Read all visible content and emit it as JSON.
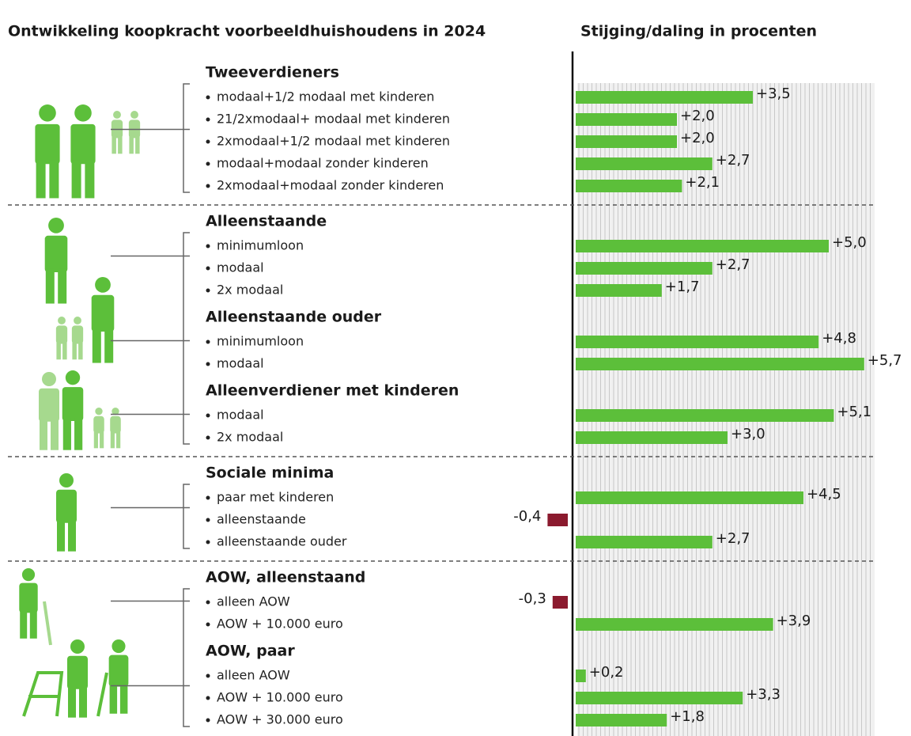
{
  "chart_data": {
    "type": "bar",
    "orientation": "horizontal",
    "title": "Ontwikkeling koopkracht voorbeeldhuishoudens in 2024",
    "subtitle": "Stijging/daling in procenten",
    "color": "#5cbf3a",
    "negative_color": "#8b1a2e",
    "xlim": [
      -1,
      6
    ],
    "sections": [
      {
        "groups": [
          {
            "name": "Tweeverdieners",
            "categories": [
              "modaal+1/2 modaal met kinderen",
              "21/2xmodaal+ modaal met kinderen",
              "2xmodaal+1/2 modaal met kinderen",
              "modaal+modaal zonder kinderen",
              "2xmodaal+modaal zonder kinderen"
            ],
            "values": [
              3.5,
              2.0,
              2.0,
              2.7,
              2.1
            ],
            "value_labels": [
              "+3,5",
              "+2,0",
              "+2,0",
              "+2,7",
              "+2,1"
            ]
          }
        ]
      },
      {
        "groups": [
          {
            "name": "Alleenstaande",
            "categories": [
              "minimumloon",
              "modaal",
              "2x modaal"
            ],
            "values": [
              5.0,
              2.7,
              1.7
            ],
            "value_labels": [
              "+5,0",
              "+2,7",
              "+1,7"
            ]
          },
          {
            "name": "Alleenstaande ouder",
            "categories": [
              "minimumloon",
              "modaal"
            ],
            "values": [
              4.8,
              5.7
            ],
            "value_labels": [
              "+4,8",
              "+5,7"
            ]
          },
          {
            "name": "Alleenverdiener met kinderen",
            "categories": [
              "modaal",
              "2x modaal"
            ],
            "values": [
              5.1,
              3.0
            ],
            "value_labels": [
              "+5,1",
              "+3,0"
            ]
          }
        ]
      },
      {
        "groups": [
          {
            "name": "Sociale minima",
            "categories": [
              "paar met kinderen",
              "alleenstaande",
              "alleenstaande ouder"
            ],
            "values": [
              4.5,
              -0.4,
              2.7
            ],
            "value_labels": [
              "+4,5",
              "-0,4",
              "+2,7"
            ]
          }
        ]
      },
      {
        "groups": [
          {
            "name": "AOW, alleenstaand",
            "categories": [
              "alleen AOW",
              "AOW + 10.000 euro"
            ],
            "values": [
              -0.3,
              3.9
            ],
            "value_labels": [
              "-0,3",
              "+3,9"
            ]
          },
          {
            "name": "AOW, paar",
            "categories": [
              "alleen AOW",
              "AOW + 10.000 euro",
              "AOW + 30.000 euro"
            ],
            "values": [
              0.2,
              3.3,
              1.8
            ],
            "value_labels": [
              "+0,2",
              "+3,3",
              "+1,8"
            ]
          }
        ]
      }
    ]
  }
}
